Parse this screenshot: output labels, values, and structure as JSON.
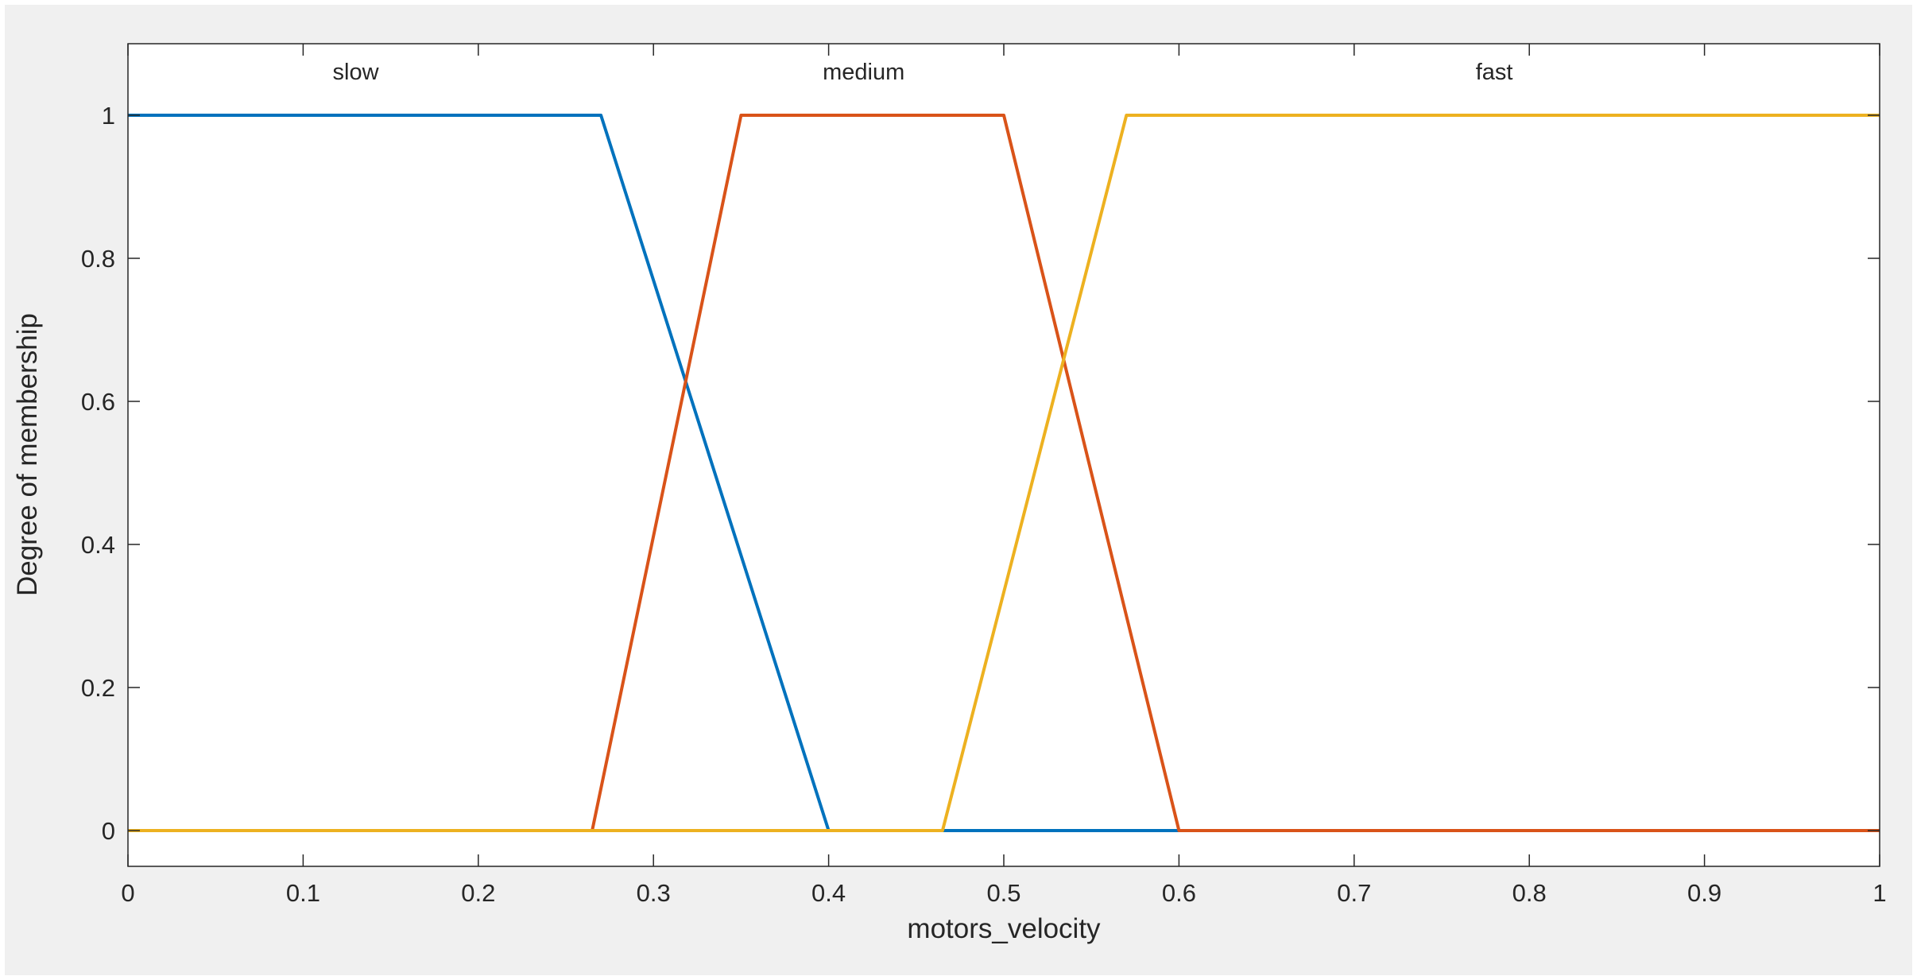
{
  "figure": {
    "background_color": "#f0f0f0",
    "plot_background_color": "#ffffff",
    "axis_color": "#262626"
  },
  "chart_data": {
    "type": "line",
    "title": "",
    "xlabel": "motors_velocity",
    "ylabel": "Degree of membership",
    "xlim": [
      0,
      1
    ],
    "ylim": [
      -0.05,
      1.1
    ],
    "x_ticks": [
      0,
      0.1,
      0.2,
      0.3,
      0.4,
      0.5,
      0.6,
      0.7,
      0.8,
      0.9,
      1
    ],
    "x_tick_labels": [
      "0",
      "0.1",
      "0.2",
      "0.3",
      "0.4",
      "0.5",
      "0.6",
      "0.7",
      "0.8",
      "0.9",
      "1"
    ],
    "y_ticks": [
      0,
      0.2,
      0.4,
      0.6,
      0.8,
      1
    ],
    "y_tick_labels": [
      "0",
      "0.2",
      "0.4",
      "0.6",
      "0.8",
      "1"
    ],
    "grid": false,
    "legend": "none",
    "series": [
      {
        "name": "slow",
        "color": "#0072BD",
        "shape": "trapezoid",
        "points": [
          [
            0,
            1
          ],
          [
            0.27,
            1
          ],
          [
            0.4,
            0
          ],
          [
            1,
            0
          ]
        ]
      },
      {
        "name": "medium",
        "color": "#D95319",
        "shape": "trapezoid",
        "points": [
          [
            0,
            0
          ],
          [
            0.265,
            0
          ],
          [
            0.35,
            1
          ],
          [
            0.5,
            1
          ],
          [
            0.6,
            0
          ],
          [
            1,
            0
          ]
        ]
      },
      {
        "name": "fast",
        "color": "#EDB120",
        "shape": "trapezoid",
        "points": [
          [
            0,
            0
          ],
          [
            0.465,
            0
          ],
          [
            0.57,
            1
          ],
          [
            1,
            1
          ]
        ]
      }
    ],
    "annotations": [
      {
        "text": "slow",
        "x": 0.13,
        "y": 1.05
      },
      {
        "text": "medium",
        "x": 0.42,
        "y": 1.05
      },
      {
        "text": "fast",
        "x": 0.78,
        "y": 1.05
      }
    ]
  }
}
